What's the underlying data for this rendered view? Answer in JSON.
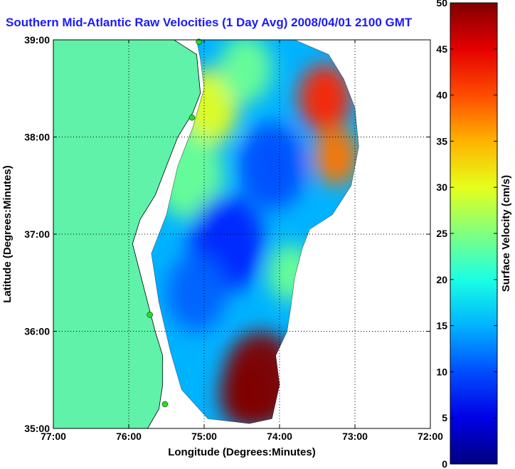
{
  "chart_data": {
    "type": "heatmap",
    "title": "Southern Mid-Atlantic Raw Velocities (1 Day Avg) 2008/04/01 2100 GMT",
    "xlabel": "Longitude (Degrees:Minutes)",
    "ylabel": "Latitude (Degrees:Minutes)",
    "colorbar_label": "Surface Velocity (cm/s)",
    "xlim": [
      -77,
      -72
    ],
    "ylim": [
      35,
      39
    ],
    "x_ticks": [
      {
        "value": -77,
        "label": "77:00"
      },
      {
        "value": -76,
        "label": "76:00"
      },
      {
        "value": -75,
        "label": "75:00"
      },
      {
        "value": -74,
        "label": "74:00"
      },
      {
        "value": -73,
        "label": "73:00"
      },
      {
        "value": -72,
        "label": "72:00"
      }
    ],
    "y_ticks": [
      {
        "value": 35,
        "label": "35:00"
      },
      {
        "value": 36,
        "label": "36:00"
      },
      {
        "value": 37,
        "label": "37:00"
      },
      {
        "value": 38,
        "label": "38:00"
      },
      {
        "value": 39,
        "label": "39:00"
      }
    ],
    "colorbar_ticks": [
      0,
      5,
      10,
      15,
      20,
      25,
      30,
      35,
      40,
      45,
      50
    ],
    "colorbar_range": [
      0,
      50
    ],
    "grid": true,
    "colors": {
      "land": "#5ff2a8",
      "title": "#1a1aff",
      "station": "#22dd22"
    },
    "coastline": [
      [
        -77,
        39
      ],
      [
        -75.4,
        39
      ],
      [
        -75.1,
        38.85
      ],
      [
        -75.05,
        38.45
      ],
      [
        -75.15,
        38.25
      ],
      [
        -75.35,
        38.0
      ],
      [
        -75.55,
        37.6
      ],
      [
        -75.65,
        37.4
      ],
      [
        -75.85,
        37.15
      ],
      [
        -75.95,
        36.9
      ],
      [
        -75.85,
        36.6
      ],
      [
        -75.75,
        36.3
      ],
      [
        -75.65,
        36.0
      ],
      [
        -75.55,
        35.75
      ],
      [
        -75.55,
        35.45
      ],
      [
        -75.6,
        35.2
      ],
      [
        -75.75,
        35.0
      ],
      [
        -77,
        35
      ]
    ],
    "coverage": [
      [
        -75.1,
        39
      ],
      [
        -73.8,
        39
      ],
      [
        -73.35,
        38.85
      ],
      [
        -73.15,
        38.6
      ],
      [
        -73.0,
        38.3
      ],
      [
        -72.95,
        37.9
      ],
      [
        -73.05,
        37.5
      ],
      [
        -73.3,
        37.2
      ],
      [
        -73.6,
        37.05
      ],
      [
        -73.7,
        36.85
      ],
      [
        -73.8,
        36.55
      ],
      [
        -73.85,
        36.25
      ],
      [
        -73.9,
        36.0
      ],
      [
        -74.05,
        35.75
      ],
      [
        -74.0,
        35.45
      ],
      [
        -74.1,
        35.1
      ],
      [
        -74.4,
        35.05
      ],
      [
        -74.95,
        35.1
      ],
      [
        -75.3,
        35.4
      ],
      [
        -75.45,
        35.8
      ],
      [
        -75.6,
        36.3
      ],
      [
        -75.7,
        36.8
      ],
      [
        -75.5,
        37.2
      ],
      [
        -75.35,
        37.7
      ],
      [
        -75.15,
        38.1
      ],
      [
        -75.0,
        38.5
      ],
      [
        -75.05,
        38.8
      ]
    ],
    "velocity_blobs": [
      {
        "lon": -74.25,
        "lat": 35.5,
        "r": 0.5,
        "v": 50
      },
      {
        "lon": -74.45,
        "lat": 35.35,
        "r": 0.35,
        "v": 50
      },
      {
        "lon": -73.4,
        "lat": 38.4,
        "r": 0.35,
        "v": 42
      },
      {
        "lon": -73.25,
        "lat": 37.8,
        "r": 0.3,
        "v": 38
      },
      {
        "lon": -74.95,
        "lat": 38.3,
        "r": 0.4,
        "v": 30
      },
      {
        "lon": -75.2,
        "lat": 37.6,
        "r": 0.45,
        "v": 24
      },
      {
        "lon": -74.45,
        "lat": 38.7,
        "r": 0.35,
        "v": 24
      },
      {
        "lon": -73.85,
        "lat": 36.6,
        "r": 0.3,
        "v": 24
      },
      {
        "lon": -74.1,
        "lat": 37.7,
        "r": 0.45,
        "v": 10
      },
      {
        "lon": -74.7,
        "lat": 36.9,
        "r": 0.5,
        "v": 8
      },
      {
        "lon": -75.1,
        "lat": 36.4,
        "r": 0.4,
        "v": 11
      }
    ],
    "stations": [
      {
        "lon": -75.07,
        "lat": 38.98
      },
      {
        "lon": -75.16,
        "lat": 38.2
      },
      {
        "lon": -75.72,
        "lat": 36.17
      },
      {
        "lon": -75.52,
        "lat": 35.25
      }
    ]
  }
}
